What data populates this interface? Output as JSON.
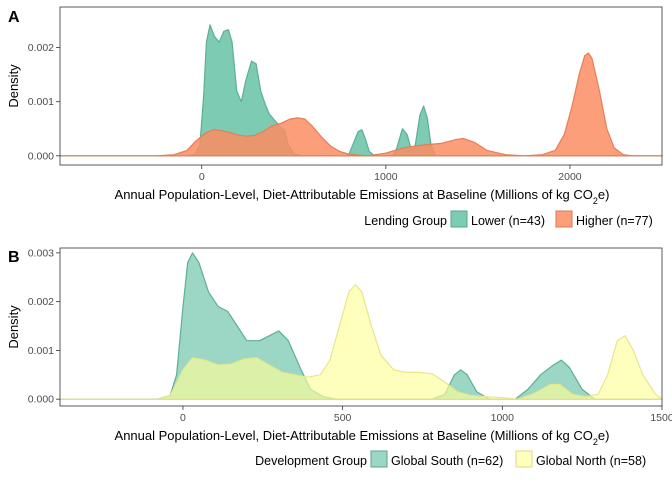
{
  "chart_data": [
    {
      "type": "area",
      "panel_label": "A",
      "xlabel": "Annual Population-Level, Diet-Attributable Emissions at Baseline (Millions of kg CO",
      "xlabel_sub": "2",
      "xlabel_end": "e)",
      "ylabel": "Density",
      "xlim": [
        -770,
        2500
      ],
      "ylim": [
        -0.00017,
        0.00275
      ],
      "x_ticks": [
        0,
        1000,
        2000
      ],
      "x_tick_labels": [
        "0",
        "1000",
        "2000"
      ],
      "y_ticks": [
        0,
        0.001,
        0.002
      ],
      "y_tick_labels": [
        "0.000",
        "0.001",
        "0.002"
      ],
      "grid": false,
      "legend_position": "bottom-right",
      "legend_title": "Lending Group",
      "series": [
        {
          "name": "Lower (n=43)",
          "color": "#66c2a5",
          "opacity": 0.85,
          "points": [
            [
              -770,
              0
            ],
            [
              -100,
              0
            ],
            [
              -40,
              2e-05
            ],
            [
              -10,
              0.0002
            ],
            [
              10,
              0.0011
            ],
            [
              25,
              0.0021
            ],
            [
              45,
              0.00242
            ],
            [
              70,
              0.0022
            ],
            [
              95,
              0.0021
            ],
            [
              120,
              0.0023
            ],
            [
              145,
              0.00233
            ],
            [
              165,
              0.0021
            ],
            [
              190,
              0.0012
            ],
            [
              215,
              0.001
            ],
            [
              240,
              0.0014
            ],
            [
              270,
              0.00175
            ],
            [
              295,
              0.0017
            ],
            [
              320,
              0.0012
            ],
            [
              345,
              0.00095
            ],
            [
              365,
              0.00078
            ],
            [
              385,
              0.0007
            ],
            [
              410,
              0.0006
            ],
            [
              430,
              0.00052
            ],
            [
              450,
              0.00047
            ],
            [
              470,
              0.0002
            ],
            [
              500,
              4e-05
            ],
            [
              540,
              0
            ],
            [
              780,
              0
            ],
            [
              800,
              3e-05
            ],
            [
              820,
              0.0002
            ],
            [
              850,
              0.00045
            ],
            [
              870,
              0.00048
            ],
            [
              890,
              0.0003
            ],
            [
              910,
              8e-05
            ],
            [
              940,
              0
            ],
            [
              1040,
              0
            ],
            [
              1060,
              0.00015
            ],
            [
              1090,
              0.0005
            ],
            [
              1115,
              0.0004
            ],
            [
              1140,
              0.0001
            ],
            [
              1160,
              0.0002
            ],
            [
              1185,
              0.00075
            ],
            [
              1205,
              0.00092
            ],
            [
              1225,
              0.0007
            ],
            [
              1245,
              0.0002
            ],
            [
              1270,
              0
            ],
            [
              2500,
              0
            ]
          ]
        },
        {
          "name": "Higher (n=77)",
          "color": "#fc8d62",
          "opacity": 0.85,
          "points": [
            [
              -770,
              0
            ],
            [
              -250,
              0
            ],
            [
              -150,
              2e-05
            ],
            [
              -80,
              0.0001
            ],
            [
              -30,
              0.00028
            ],
            [
              20,
              0.00042
            ],
            [
              60,
              0.00048
            ],
            [
              100,
              0.00047
            ],
            [
              150,
              0.00043
            ],
            [
              200,
              0.00038
            ],
            [
              250,
              0.00036
            ],
            [
              290,
              0.00038
            ],
            [
              330,
              0.00044
            ],
            [
              380,
              0.00055
            ],
            [
              430,
              0.0006
            ],
            [
              480,
              0.00068
            ],
            [
              520,
              0.0007
            ],
            [
              560,
              0.00068
            ],
            [
              600,
              0.00055
            ],
            [
              650,
              0.00035
            ],
            [
              700,
              0.00018
            ],
            [
              750,
              8e-05
            ],
            [
              800,
              3e-05
            ],
            [
              900,
              0.0
            ],
            [
              1000,
              5e-05
            ],
            [
              1100,
              0.00015
            ],
            [
              1200,
              0.0002
            ],
            [
              1300,
              0.00023
            ],
            [
              1380,
              0.0003
            ],
            [
              1420,
              0.00032
            ],
            [
              1480,
              0.00025
            ],
            [
              1550,
              0.0001
            ],
            [
              1650,
              2e-05
            ],
            [
              1750,
              0
            ],
            [
              1850,
              2e-05
            ],
            [
              1920,
              0.0001
            ],
            [
              1970,
              0.0004
            ],
            [
              2010,
              0.0009
            ],
            [
              2050,
              0.0015
            ],
            [
              2080,
              0.00185
            ],
            [
              2100,
              0.0019
            ],
            [
              2120,
              0.0018
            ],
            [
              2160,
              0.0012
            ],
            [
              2200,
              0.0005
            ],
            [
              2240,
              0.00015
            ],
            [
              2290,
              2e-05
            ],
            [
              2340,
              0
            ],
            [
              2500,
              0
            ]
          ]
        }
      ]
    },
    {
      "type": "area",
      "panel_label": "B",
      "xlabel": "Annual Population-Level, Diet-Attributable Emissions at Baseline (Millions of kg CO",
      "xlabel_sub": "2",
      "xlabel_end": "e)",
      "ylabel": "Density",
      "xlim": [
        -385,
        1500
      ],
      "ylim": [
        -0.00014,
        0.0031
      ],
      "x_ticks": [
        0,
        500,
        1000,
        1500
      ],
      "x_tick_labels": [
        "0",
        "500",
        "1000",
        "1500"
      ],
      "y_ticks": [
        0,
        0.001,
        0.002,
        0.003
      ],
      "y_tick_labels": [
        "0.000",
        "0.001",
        "0.002",
        "0.003"
      ],
      "grid": false,
      "legend_position": "bottom-right",
      "legend_title": "Development Group",
      "series": [
        {
          "name": "Global South (n=62)",
          "color": "#66c2a5",
          "opacity": 0.65,
          "points": [
            [
              -385,
              0
            ],
            [
              -80,
              0
            ],
            [
              -40,
              8e-05
            ],
            [
              -20,
              0.0005
            ],
            [
              0,
              0.0019
            ],
            [
              15,
              0.0028
            ],
            [
              30,
              0.003
            ],
            [
              50,
              0.0028
            ],
            [
              80,
              0.0022
            ],
            [
              110,
              0.0019
            ],
            [
              140,
              0.0018
            ],
            [
              170,
              0.0015
            ],
            [
              200,
              0.0012
            ],
            [
              240,
              0.0012
            ],
            [
              270,
              0.0013
            ],
            [
              300,
              0.0014
            ],
            [
              330,
              0.0012
            ],
            [
              370,
              0.0006
            ],
            [
              400,
              0.0002
            ],
            [
              440,
              5e-05
            ],
            [
              480,
              0
            ],
            [
              780,
              0
            ],
            [
              820,
              0.0001
            ],
            [
              850,
              0.0005
            ],
            [
              870,
              0.0006
            ],
            [
              890,
              0.0005
            ],
            [
              920,
              0.00015
            ],
            [
              960,
              0
            ],
            [
              1040,
              0
            ],
            [
              1080,
              0.0002
            ],
            [
              1120,
              0.0005
            ],
            [
              1160,
              0.0007
            ],
            [
              1185,
              0.0008
            ],
            [
              1210,
              0.00065
            ],
            [
              1250,
              0.0002
            ],
            [
              1290,
              0
            ],
            [
              1500,
              0
            ]
          ]
        },
        {
          "name": "Global North (n=58)",
          "color": "#ffff99",
          "opacity": 0.65,
          "points": [
            [
              -385,
              0
            ],
            [
              -80,
              0
            ],
            [
              -40,
              8e-05
            ],
            [
              0,
              0.0006
            ],
            [
              30,
              0.00085
            ],
            [
              70,
              0.0008
            ],
            [
              110,
              0.0007
            ],
            [
              150,
              0.00072
            ],
            [
              190,
              0.00082
            ],
            [
              230,
              0.00085
            ],
            [
              270,
              0.0007
            ],
            [
              310,
              0.00055
            ],
            [
              350,
              0.0005
            ],
            [
              390,
              0.00045
            ],
            [
              430,
              0.0005
            ],
            [
              460,
              0.0008
            ],
            [
              490,
              0.0015
            ],
            [
              520,
              0.0022
            ],
            [
              540,
              0.00235
            ],
            [
              560,
              0.0022
            ],
            [
              590,
              0.0015
            ],
            [
              620,
              0.0009
            ],
            [
              660,
              0.0006
            ],
            [
              700,
              0.00055
            ],
            [
              740,
              0.00055
            ],
            [
              780,
              0.00052
            ],
            [
              820,
              0.00035
            ],
            [
              860,
              0.00015
            ],
            [
              900,
              8e-05
            ],
            [
              950,
              5e-05
            ],
            [
              1000,
              3e-05
            ],
            [
              1050,
              0.0
            ],
            [
              1100,
              0.00012
            ],
            [
              1150,
              0.0003
            ],
            [
              1180,
              0.0003
            ],
            [
              1220,
              0.0001
            ],
            [
              1260,
              5e-05
            ],
            [
              1300,
              0.0001
            ],
            [
              1330,
              0.0005
            ],
            [
              1360,
              0.0012
            ],
            [
              1385,
              0.0013
            ],
            [
              1410,
              0.001
            ],
            [
              1440,
              0.0005
            ],
            [
              1480,
              0.0001
            ],
            [
              1500,
              0
            ]
          ]
        }
      ]
    }
  ]
}
